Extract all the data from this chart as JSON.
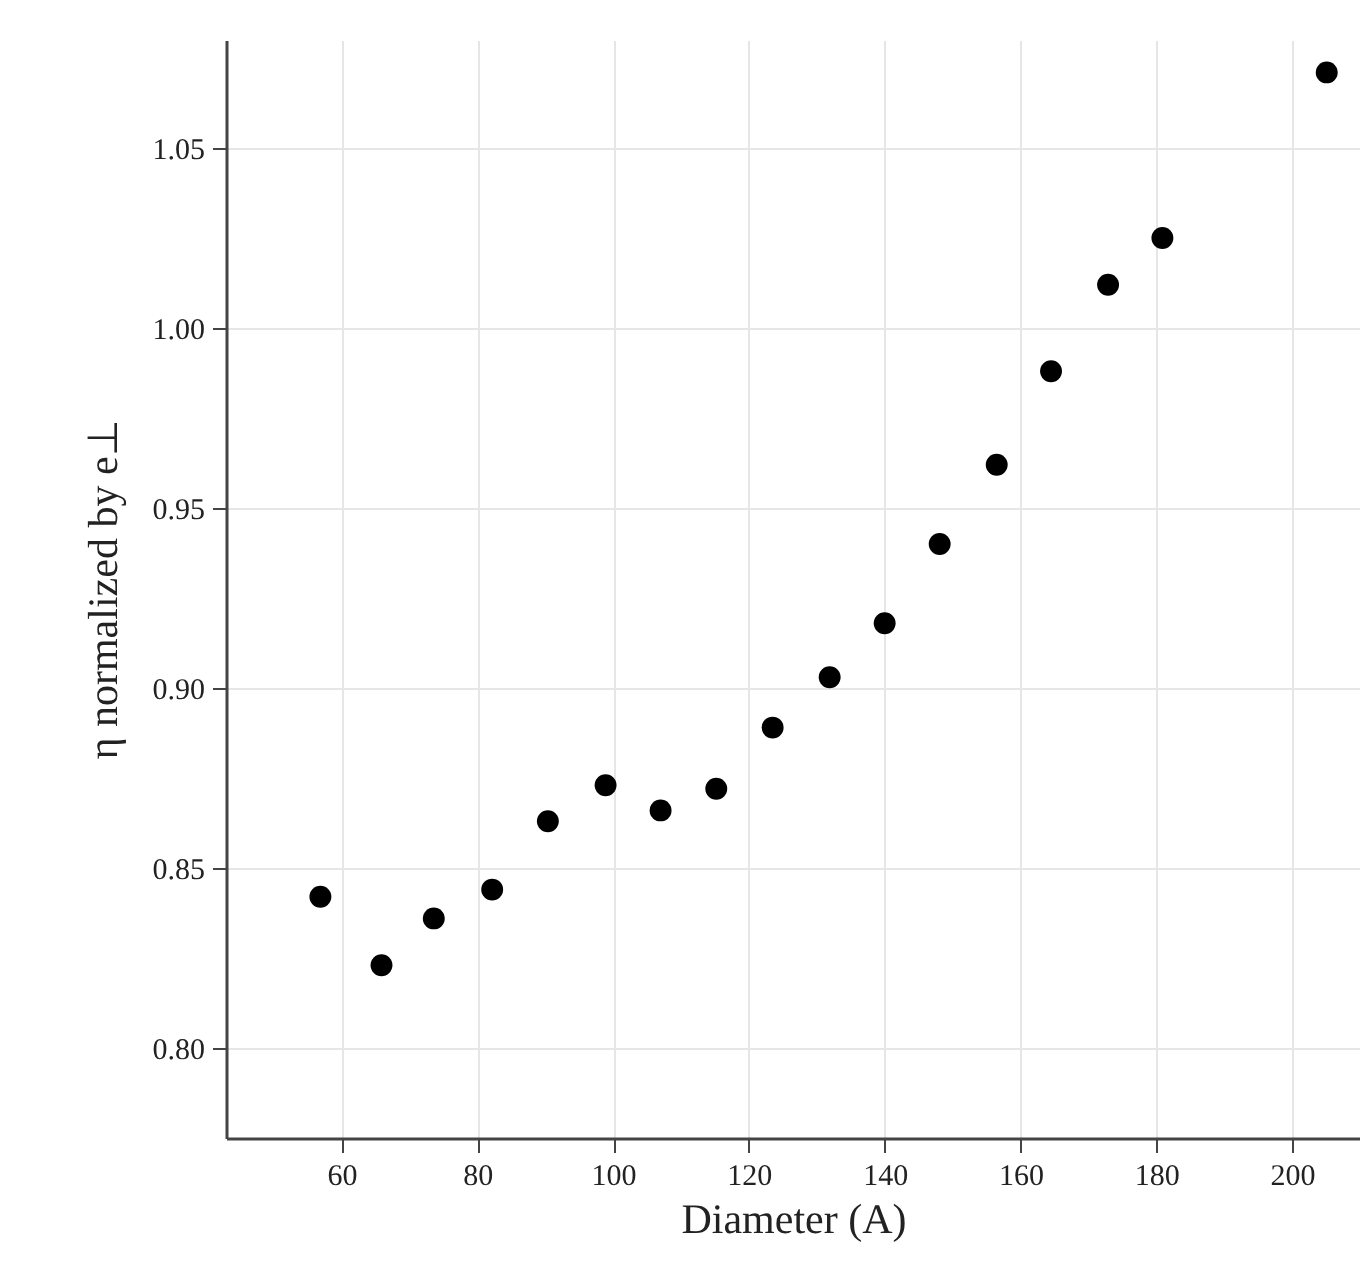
{
  "chart_data": {
    "type": "scatter",
    "xlabel": "Diameter (A)",
    "ylabel": "η normalized by e⊥",
    "x": [
      56.9,
      65.9,
      73.6,
      82.2,
      90.4,
      98.9,
      107.0,
      115.2,
      123.5,
      131.9,
      140.0,
      148.1,
      156.5,
      164.5,
      172.9,
      180.9,
      205.1
    ],
    "series": [
      {
        "color": "#000000",
        "values": [
          0.842,
          0.823,
          0.836,
          0.844,
          0.863,
          0.873,
          0.866,
          0.872,
          0.889,
          0.903,
          0.918,
          0.94,
          0.962,
          0.988,
          1.012,
          1.025,
          1.071
        ]
      }
    ],
    "xlim": [
      43,
      210
    ],
    "xticks": [
      60,
      80,
      100,
      120,
      140,
      160,
      180,
      200
    ],
    "ylim": [
      0.775,
      1.08
    ],
    "yticks": [
      {
        "value": 0.8,
        "label": "0.80"
      },
      0.85,
      {
        "value": 0.9,
        "label": "0.90"
      },
      0.95,
      {
        "value": 1,
        "label": "1.00"
      },
      1.05
    ],
    "grid": true,
    "marker": "circle"
  }
}
